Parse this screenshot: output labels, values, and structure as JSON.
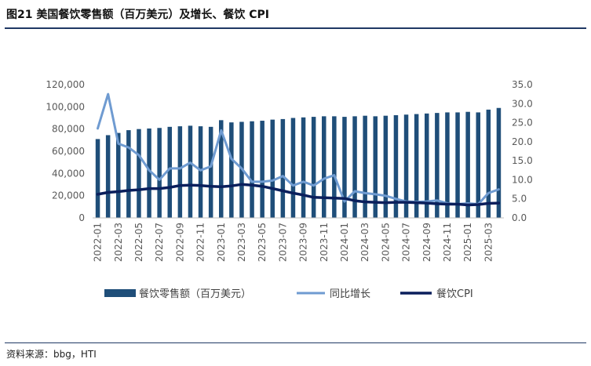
{
  "title": "图21 美国餐饮零售额（百万美元）及增长、餐饮 CPI",
  "source": "资料来源：bbg，HTI",
  "chart_data": {
    "type": "bar-line-combo",
    "x": [
      "2022-01",
      "2022-02",
      "2022-03",
      "2022-04",
      "2022-05",
      "2022-06",
      "2022-07",
      "2022-08",
      "2022-09",
      "2022-10",
      "2022-11",
      "2022-12",
      "2023-01",
      "2023-02",
      "2023-03",
      "2023-04",
      "2023-05",
      "2023-06",
      "2023-07",
      "2023-08",
      "2023-09",
      "2023-10",
      "2023-11",
      "2023-12",
      "2024-01",
      "2024-02",
      "2024-03",
      "2024-04",
      "2024-05",
      "2024-06",
      "2024-07",
      "2024-08",
      "2024-09",
      "2024-10",
      "2024-11",
      "2024-12",
      "2025-01",
      "2025-02",
      "2025-03",
      "2025-04"
    ],
    "xticks": [
      "2022-01",
      "2022-03",
      "2022-05",
      "2022-07",
      "2022-09",
      "2022-11",
      "2023-01",
      "2023-03",
      "2023-05",
      "2023-07",
      "2023-09",
      "2023-11",
      "2024-01",
      "2024-03",
      "2024-05",
      "2024-07",
      "2024-09",
      "2024-11",
      "2025-01",
      "2025-03"
    ],
    "y_left": {
      "min": 0,
      "max": 120000,
      "step": 20000,
      "ticks": [
        "0",
        "20,000",
        "40,000",
        "60,000",
        "80,000",
        "100,000",
        "120,000"
      ]
    },
    "y_right": {
      "min": 0,
      "max": 35,
      "step": 5,
      "ticks": [
        "0.0",
        "5.0",
        "10.0",
        "15.0",
        "20.0",
        "25.0",
        "30.0",
        "35.0"
      ]
    },
    "series": [
      {
        "name": "餐饮零售额（百万美元）",
        "type": "bar",
        "axis": "left",
        "color": "#1f4e79",
        "values": [
          71000,
          74500,
          76500,
          79000,
          80000,
          80500,
          81000,
          82000,
          82500,
          83000,
          82500,
          82000,
          88000,
          86000,
          86500,
          87000,
          87500,
          88500,
          89000,
          90000,
          90500,
          91000,
          91500,
          91500,
          91000,
          91500,
          92000,
          91500,
          92000,
          92500,
          93000,
          93500,
          94000,
          94500,
          95000,
          95000,
          95500,
          95000,
          97500,
          99000
        ]
      },
      {
        "name": "同比增长",
        "type": "line",
        "axis": "right",
        "color": "#6f9bd1",
        "values": [
          23.5,
          32.5,
          19.5,
          18.5,
          16.5,
          12.5,
          10,
          13,
          13,
          14.5,
          12.5,
          13.5,
          23,
          15.5,
          13,
          9.5,
          9.5,
          9.8,
          11,
          8.5,
          9.5,
          8.5,
          10.3,
          11.2,
          4.3,
          7,
          6.5,
          6.2,
          5.8,
          5,
          4.3,
          4.2,
          4.3,
          4.6,
          3.8,
          3.6,
          3.8,
          3.6,
          6.5,
          7.5
        ]
      },
      {
        "name": "餐饮CPI",
        "type": "line",
        "axis": "right",
        "color": "#0a1f5c",
        "values": [
          6.2,
          6.7,
          6.9,
          7.2,
          7.4,
          7.7,
          7.7,
          8.0,
          8.5,
          8.6,
          8.5,
          8.3,
          8.2,
          8.4,
          8.8,
          8.6,
          8.3,
          7.7,
          7.1,
          6.5,
          6.0,
          5.4,
          5.3,
          5.2,
          5.1,
          4.5,
          4.2,
          4.1,
          4.0,
          4.1,
          4.1,
          4.0,
          3.9,
          3.7,
          3.6,
          3.6,
          3.4,
          3.5,
          3.8,
          3.9
        ]
      }
    ],
    "legend": {
      "position": "bottom",
      "entries": [
        "餐饮零售额（百万美元）",
        "同比增长",
        "餐饮CPI"
      ]
    }
  }
}
